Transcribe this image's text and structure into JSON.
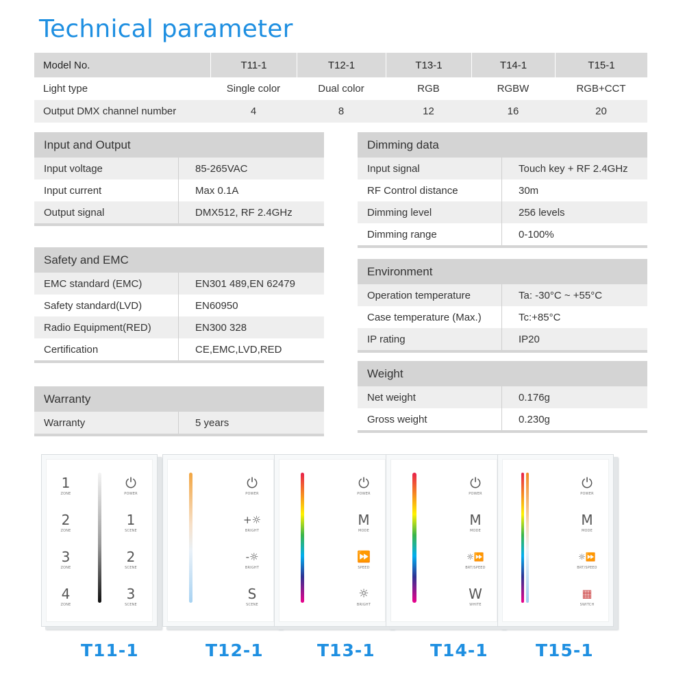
{
  "title": "Technical parameter",
  "spec": {
    "header": [
      "Model No.",
      "T11-1",
      "T12-1",
      "T13-1",
      "T14-1",
      "T15-1"
    ],
    "rows": [
      [
        "Light type",
        "Single color",
        "Dual color",
        "RGB",
        "RGBW",
        "RGB+CCT"
      ],
      [
        "Output DMX channel number",
        "4",
        "8",
        "12",
        "16",
        "20"
      ]
    ]
  },
  "input_output": {
    "heading": "Input and Output",
    "rows": [
      {
        "k": "Input voltage",
        "v": "85-265VAC"
      },
      {
        "k": "Input current",
        "v": "Max 0.1A"
      },
      {
        "k": "Output signal",
        "v": "DMX512, RF 2.4GHz"
      }
    ]
  },
  "safety": {
    "heading": "Safety and EMC",
    "rows": [
      {
        "k": "EMC standard (EMC)",
        "v": "EN301 489,EN 62479"
      },
      {
        "k": "Safety standard(LVD)",
        "v": "EN60950"
      },
      {
        "k": "Radio Equipment(RED)",
        "v": "EN300 328"
      },
      {
        "k": "Certification",
        "v": "CE,EMC,LVD,RED"
      }
    ]
  },
  "warranty": {
    "heading": "Warranty",
    "rows": [
      {
        "k": "Warranty",
        "v": "5 years"
      }
    ]
  },
  "dimming": {
    "heading": "Dimming data",
    "rows": [
      {
        "k": "Input signal",
        "v": "Touch key + RF 2.4GHz"
      },
      {
        "k": "RF Control distance",
        "v": "30m"
      },
      {
        "k": "Dimming level",
        "v": "256 levels"
      },
      {
        "k": "Dimming range",
        "v": "0-100%"
      }
    ]
  },
  "environment": {
    "heading": "Environment",
    "rows": [
      {
        "k": "Operation temperature",
        "v": "Ta: -30°C ~ +55°C"
      },
      {
        "k": "Case temperature (Max.)",
        "v": "Tc:+85°C"
      },
      {
        "k": "IP rating",
        "v": "IP20"
      }
    ]
  },
  "weight": {
    "heading": "Weight",
    "rows": [
      {
        "k": "Net weight",
        "v": "0.176g"
      },
      {
        "k": "Gross weight",
        "v": "0.230g"
      }
    ]
  },
  "products": [
    {
      "label": "T11-1",
      "left_keys": [
        {
          "sym": "1",
          "cap": "ZONE"
        },
        {
          "sym": "2",
          "cap": "ZONE"
        },
        {
          "sym": "3",
          "cap": "ZONE"
        },
        {
          "sym": "4",
          "cap": "ZONE"
        }
      ],
      "right_keys": [
        {
          "sym": "⏻",
          "cap": "POWER",
          "icon": "power-icon"
        },
        {
          "sym": "1",
          "cap": "SCENE"
        },
        {
          "sym": "2",
          "cap": "SCENE"
        },
        {
          "sym": "3",
          "cap": "SCENE"
        }
      ],
      "bar": "mono"
    },
    {
      "label": "T12-1",
      "right_keys": [
        {
          "sym": "⏻",
          "cap": "POWER",
          "icon": "power-icon"
        },
        {
          "sym": "+☼",
          "cap": "BRIGHT",
          "icon": "brightness-up-icon"
        },
        {
          "sym": "-☼",
          "cap": "BRIGHT",
          "icon": "brightness-down-icon"
        },
        {
          "sym": "S",
          "cap": "SCENE"
        }
      ],
      "bar": "cct"
    },
    {
      "label": "T13-1",
      "right_keys": [
        {
          "sym": "⏻",
          "cap": "POWER",
          "icon": "power-icon"
        },
        {
          "sym": "M",
          "cap": "MODE"
        },
        {
          "sym": "⏩",
          "cap": "SPEED",
          "icon": "speed-icon"
        },
        {
          "sym": "☼",
          "cap": "BRIGHT",
          "icon": "brightness-icon"
        }
      ],
      "bar": "rgb"
    },
    {
      "label": "T14-1",
      "right_keys": [
        {
          "sym": "⏻",
          "cap": "POWER",
          "icon": "power-icon"
        },
        {
          "sym": "M",
          "cap": "MODE"
        },
        {
          "sym": "☼⏩",
          "cap": "BRT/SPEED",
          "icon": "bright-speed-icon"
        },
        {
          "sym": "W",
          "cap": "WHITE"
        }
      ],
      "bar": "rgb"
    },
    {
      "label": "T15-1",
      "right_keys": [
        {
          "sym": "⏻",
          "cap": "POWER",
          "icon": "power-icon"
        },
        {
          "sym": "M",
          "cap": "MODE"
        },
        {
          "sym": "☼⏩",
          "cap": "BRT/SPEED",
          "icon": "bright-speed-icon"
        },
        {
          "sym": "▦",
          "cap": "SWITCH",
          "icon": "switch-icon"
        }
      ],
      "bar": "rgbcct"
    }
  ],
  "colors": {
    "title": "#1e8fe1",
    "header_bg": "#d4d4d4",
    "alt_row": "#eeeeee"
  }
}
